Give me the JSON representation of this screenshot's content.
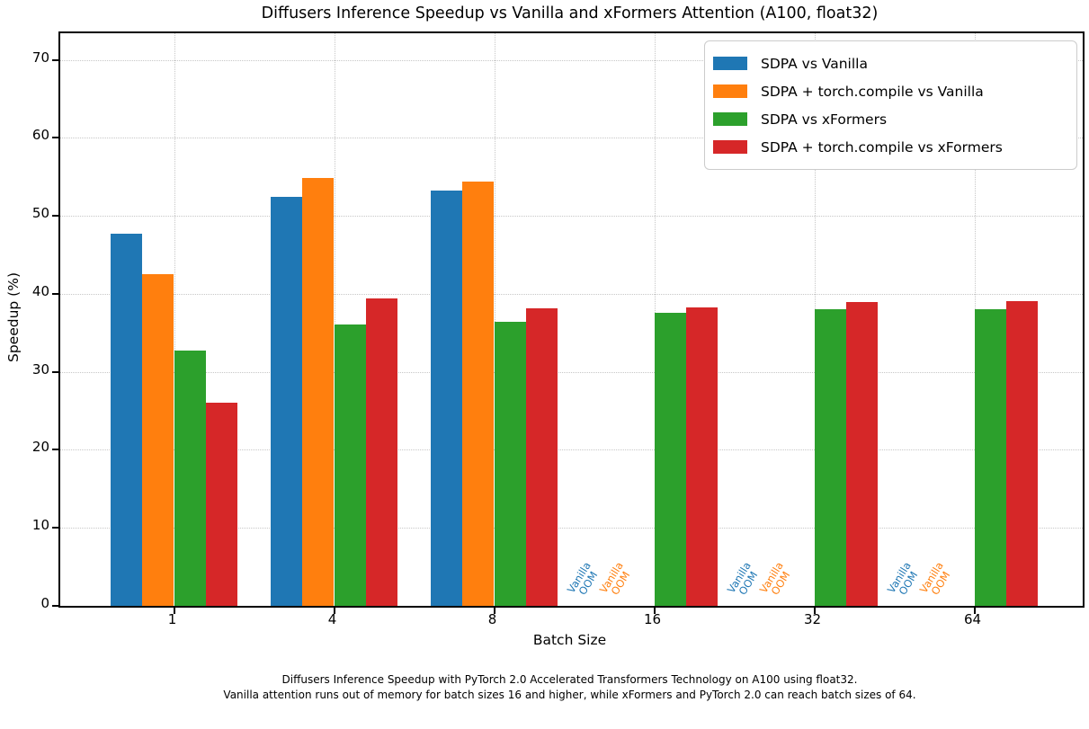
{
  "chart_data": {
    "type": "bar",
    "title": "Diffusers Inference Speedup vs Vanilla and xFormers Attention (A100, float32)",
    "xlabel": "Batch Size",
    "ylabel": "Speedup (%)",
    "categories": [
      "1",
      "4",
      "8",
      "16",
      "32",
      "64"
    ],
    "series": [
      {
        "name": "SDPA vs Vanilla",
        "color": "#1f77b4",
        "values": [
          47.7,
          52.4,
          53.2,
          null,
          null,
          null
        ]
      },
      {
        "name": "SDPA + torch.compile vs Vanilla",
        "color": "#ff7f0e",
        "values": [
          42.5,
          54.8,
          54.4,
          null,
          null,
          null
        ]
      },
      {
        "name": "SDPA vs xFormers",
        "color": "#2ca02c",
        "values": [
          32.7,
          36.1,
          36.4,
          37.6,
          38.0,
          38.0
        ]
      },
      {
        "name": "SDPA + torch.compile vs xFormers",
        "color": "#d62728",
        "values": [
          26.0,
          39.4,
          38.1,
          38.3,
          38.9,
          39.1
        ]
      }
    ],
    "ylim": [
      0,
      73.4
    ],
    "yticks": [
      0,
      10,
      20,
      30,
      40,
      50,
      60,
      70
    ],
    "grid": true,
    "grid_style": "dotted",
    "legend_position": "upper right",
    "oom_annotations": {
      "lines": [
        "Vanilla",
        "OOM"
      ],
      "items": [
        {
          "category_index": 3,
          "series_index": 0
        },
        {
          "category_index": 3,
          "series_index": 1
        },
        {
          "category_index": 4,
          "series_index": 0
        },
        {
          "category_index": 4,
          "series_index": 1
        },
        {
          "category_index": 5,
          "series_index": 0
        },
        {
          "category_index": 5,
          "series_index": 1
        }
      ]
    },
    "caption_line1": "Diffusers Inference Speedup with PyTorch 2.0 Accelerated Transformers Technology on A100 using float32.",
    "caption_line2": "Vanilla attention runs out of memory for batch sizes 16 and higher, while xFormers and PyTorch 2.0 can reach batch sizes of 64."
  }
}
